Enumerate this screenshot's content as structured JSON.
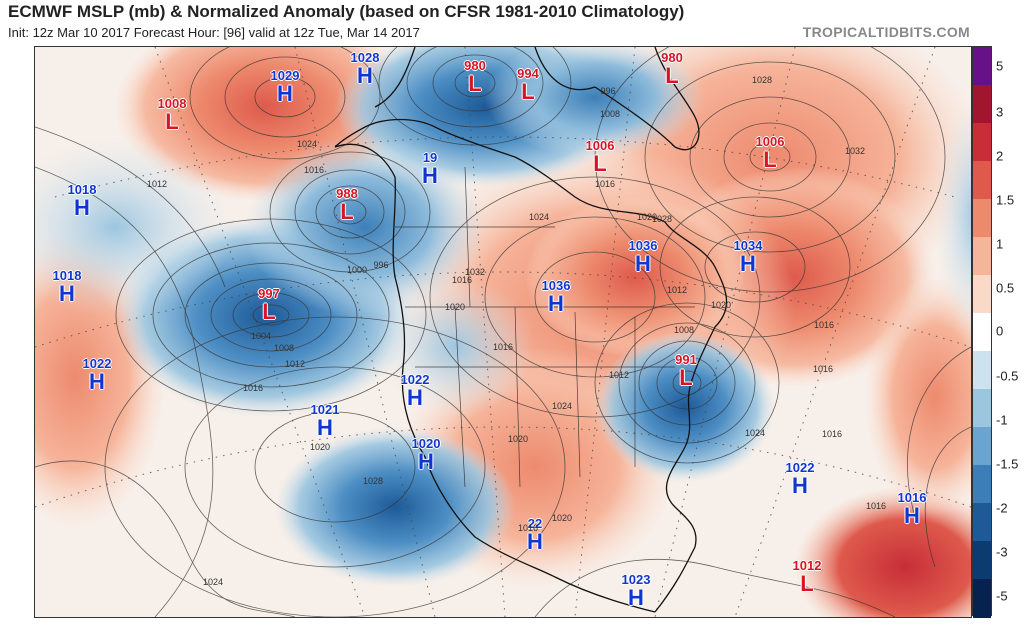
{
  "header": {
    "title": "ECMWF MSLP (mb) & Normalized Anomaly (based on CFSR 1981-2010 Climatology)",
    "subtitle": "Init: 12z Mar 10 2017   Forecast Hour: [96]   valid at 12z Tue, Mar 14 2017",
    "credit": "TROPICALTIDBITS.COM"
  },
  "colorbar": {
    "labels": [
      "5",
      "3",
      "2",
      "1.5",
      "1",
      "0.5",
      "0",
      "-0.5",
      "-1",
      "-1.5",
      "-2",
      "-3",
      "-5"
    ],
    "colors": [
      "#6a0f8a",
      "#a0162e",
      "#c72e38",
      "#de5a4c",
      "#ed8a6e",
      "#f6b49a",
      "#fbd9c8",
      "#ffffff",
      "#cde1ee",
      "#9cc6e0",
      "#6ba5cf",
      "#3c7fb8",
      "#1d5a98",
      "#0c3a72",
      "#07224e"
    ]
  },
  "pressure_centers": [
    {
      "type": "H",
      "value": "1029"
    },
    {
      "type": "L",
      "value": "1008"
    },
    {
      "type": "H",
      "value": "1028"
    },
    {
      "type": "L",
      "value": "980"
    },
    {
      "type": "L",
      "value": "994"
    },
    {
      "type": "L",
      "value": "980"
    },
    {
      "type": "L",
      "value": "1006"
    },
    {
      "type": "H",
      "value": "1018"
    },
    {
      "type": "H",
      "value": "19"
    },
    {
      "type": "L",
      "value": "988"
    },
    {
      "type": "L",
      "value": "1006"
    },
    {
      "type": "H",
      "value": "1018"
    },
    {
      "type": "L",
      "value": "997"
    },
    {
      "type": "H",
      "value": "1036"
    },
    {
      "type": "H",
      "value": "1034"
    },
    {
      "type": "H",
      "value": "1036"
    },
    {
      "type": "H",
      "value": "1022"
    },
    {
      "type": "L",
      "value": "991"
    },
    {
      "type": "H",
      "value": "1022"
    },
    {
      "type": "H",
      "value": "1021"
    },
    {
      "type": "H",
      "value": "1020"
    },
    {
      "type": "H",
      "value": "1022"
    },
    {
      "type": "H",
      "value": "22"
    },
    {
      "type": "H",
      "value": "1016"
    },
    {
      "type": "H",
      "value": "1023"
    },
    {
      "type": "L",
      "value": "1012"
    }
  ],
  "isobar_labels": [
    "1028",
    "1024",
    "1032",
    "1012",
    "1016",
    "1000",
    "996",
    "1004",
    "1008",
    "1012",
    "1016",
    "1020",
    "1016",
    "1024",
    "1020",
    "1028",
    "1032",
    "1020",
    "1016",
    "1012",
    "1008",
    "1016",
    "1024",
    "1020",
    "1016",
    "1016",
    "1012",
    "1020",
    "1024",
    "1016",
    "1016",
    "1028",
    "1024",
    "1020",
    "1016",
    "996",
    "1008"
  ],
  "colors": {
    "high_label": "#1036d0",
    "low_label": "#d51525"
  }
}
